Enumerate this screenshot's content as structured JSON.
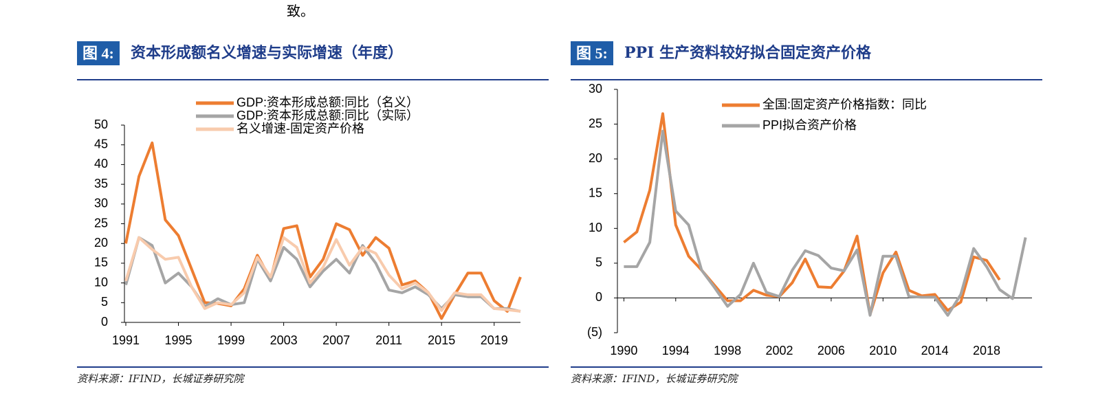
{
  "body_text": "致。",
  "chart_data": [
    {
      "type": "line",
      "figure_label": "图 4:",
      "title": "资本形成额名义增速与实际增速（年度）",
      "source": "资料来源：IFIND，长城证券研究院",
      "x": [
        1991,
        1992,
        1993,
        1994,
        1995,
        1996,
        1997,
        1998,
        1999,
        2000,
        2001,
        2002,
        2003,
        2004,
        2005,
        2006,
        2007,
        2008,
        2009,
        2010,
        2011,
        2012,
        2013,
        2014,
        2015,
        2016,
        2017,
        2018,
        2019,
        2020,
        2021
      ],
      "series": [
        {
          "name": "GDP:资本形成总额:同比（名义）",
          "color": "#ed7d31",
          "values": [
            20,
            37,
            45.5,
            26,
            22,
            13.5,
            5,
            4.8,
            4.2,
            8.5,
            17,
            11,
            23.8,
            24.5,
            11.5,
            16,
            25,
            23.5,
            17,
            21.5,
            18.8,
            9.5,
            10.5,
            7.5,
            1,
            7,
            12.5,
            12.5,
            5.5,
            2.8,
            11.5
          ]
        },
        {
          "name": "GDP:资本形成总额:同比（实际）",
          "color": "#a5a5a5",
          "values": [
            9.5,
            21.5,
            19.5,
            10,
            12.5,
            9,
            4,
            6,
            4.5,
            5,
            16,
            10.5,
            19,
            16,
            9,
            13,
            16,
            12.5,
            19.5,
            15,
            8.2,
            7.5,
            9,
            7,
            3.5,
            7,
            6.5,
            6.5,
            3.5,
            3.5,
            2.8
          ]
        },
        {
          "name": "名义增速-固定资产价格",
          "color": "#f8cbad",
          "values": [
            10.5,
            21.5,
            18.5,
            16,
            16.5,
            9,
            3.5,
            5,
            4.5,
            7.5,
            16.5,
            11.5,
            21.5,
            19,
            10,
            14,
            21,
            14.5,
            19,
            17.5,
            12,
            8.5,
            10,
            7.5,
            3,
            7.5,
            7,
            7,
            3.5,
            3.2,
            2.8
          ]
        }
      ],
      "xlim": [
        1991,
        2021
      ],
      "xticks": [
        1991,
        1995,
        1999,
        2003,
        2007,
        2011,
        2015,
        2019
      ],
      "ylim": [
        0,
        50
      ],
      "yticks": [
        0,
        5,
        10,
        15,
        20,
        25,
        30,
        35,
        40,
        45,
        50
      ],
      "grid": false,
      "legend": "top"
    },
    {
      "type": "line",
      "figure_label": "图 5:",
      "title": "PPI 生产资料较好拟合固定资产价格",
      "source": "资料来源：IFIND，长城证券研究院",
      "x": [
        1990,
        1991,
        1992,
        1993,
        1994,
        1995,
        1996,
        1997,
        1998,
        1999,
        2000,
        2001,
        2002,
        2003,
        2004,
        2005,
        2006,
        2007,
        2008,
        2009,
        2010,
        2011,
        2012,
        2013,
        2014,
        2015,
        2016,
        2017,
        2018,
        2019,
        2020,
        2021
      ],
      "series": [
        {
          "name": "全国:固定资产价格指数：同比",
          "color": "#ed7d31",
          "values": [
            8,
            9.5,
            15.5,
            26.5,
            10.5,
            6,
            4,
            1.8,
            -0.4,
            -0.4,
            1.1,
            0.4,
            0.2,
            2.2,
            5.6,
            1.6,
            1.5,
            3.9,
            8.9,
            -2.4,
            3.6,
            6.6,
            1.1,
            0.3,
            0.5,
            -1.8,
            -0.6,
            5.9,
            5.4,
            2.6,
            null,
            null
          ]
        },
        {
          "name": "PPI拟合资产价格",
          "color": "#a5a5a5",
          "values": [
            4.5,
            4.5,
            8,
            24,
            12.5,
            10.5,
            4,
            1.5,
            -1.2,
            0.5,
            5,
            0.8,
            0.2,
            4,
            6.8,
            6.1,
            4.3,
            3.9,
            6.9,
            -2.5,
            6,
            6,
            0.2,
            0.1,
            0.1,
            -2.5,
            0.5,
            7.1,
            4.5,
            1.2,
            -0.1,
            8.7
          ]
        }
      ],
      "xlim": [
        1989.5,
        2021.5
      ],
      "xticks": [
        1990,
        1994,
        1998,
        2002,
        2006,
        2010,
        2014,
        2018
      ],
      "ylim": [
        -5,
        30
      ],
      "yticks": [
        {
          "value": -5,
          "label": "(5)"
        },
        0,
        5,
        10,
        15,
        20,
        25,
        30
      ],
      "grid": false,
      "legend": "top"
    }
  ]
}
